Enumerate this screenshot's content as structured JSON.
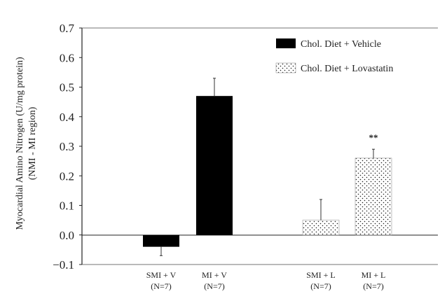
{
  "chart_data": {
    "type": "bar",
    "ylabel_line1": "Myocardial Amino Nitrogen (U/mg protein)",
    "ylabel_line2": "(NMI - MI region)",
    "ylim": [
      -0.1,
      0.7
    ],
    "yticks": [
      "−0.1",
      "0.0",
      "0.1",
      "0.2",
      "0.3",
      "0.4",
      "0.5",
      "0.6",
      "0.7"
    ],
    "ytick_values": [
      -0.1,
      0.0,
      0.1,
      0.2,
      0.3,
      0.4,
      0.5,
      0.6,
      0.7
    ],
    "grid": false,
    "legend_position": "top-right",
    "series": [
      {
        "name": "Chol. Diet + Vehicle",
        "pattern": "solid",
        "color": "#000000"
      },
      {
        "name": "Chol. Diet + Lovastatin",
        "pattern": "dotted",
        "color": "#000000"
      }
    ],
    "bars": [
      {
        "label_line1": "SMI + V",
        "label_line2": "(N=7)",
        "series": 0,
        "value": -0.04,
        "error": 0.03,
        "significance": ""
      },
      {
        "label_line1": "MI + V",
        "label_line2": "(N=7)",
        "series": 0,
        "value": 0.47,
        "error": 0.06,
        "significance": ""
      },
      {
        "label_line1": "SMI + L",
        "label_line2": "(N=7)",
        "series": 1,
        "value": 0.05,
        "error": 0.07,
        "significance": ""
      },
      {
        "label_line1": "MI + L",
        "label_line2": "(N=7)",
        "series": 1,
        "value": 0.26,
        "error": 0.03,
        "significance": "**"
      }
    ]
  }
}
